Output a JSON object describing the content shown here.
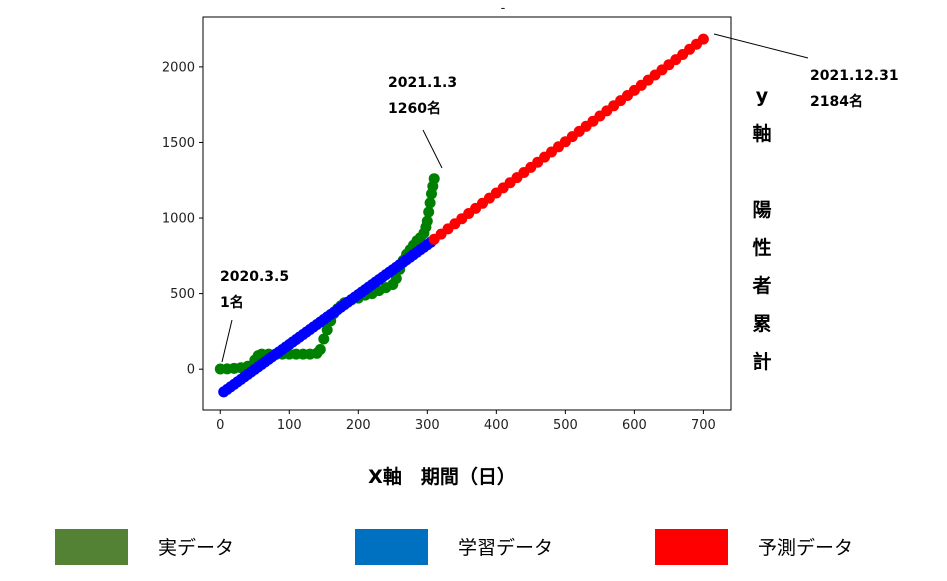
{
  "chart_data": {
    "type": "scatter",
    "title": "-",
    "xlabel": "X軸　期間（日）",
    "ylabel_chars": [
      "y",
      "軸",
      "",
      "陽",
      "性",
      "者",
      "累",
      "計"
    ],
    "xlim": [
      -25,
      740
    ],
    "ylim": [
      -270,
      2330
    ],
    "xticks": [
      0,
      100,
      200,
      300,
      400,
      500,
      600,
      700
    ],
    "yticks": [
      0,
      500,
      1000,
      1500,
      2000
    ],
    "grid": false,
    "legend_position": "bottom",
    "series": [
      {
        "name": "実データ",
        "color": "#008000",
        "legend_color": "#548235",
        "points": [
          [
            0,
            1
          ],
          [
            10,
            2
          ],
          [
            20,
            5
          ],
          [
            30,
            10
          ],
          [
            40,
            20
          ],
          [
            50,
            60
          ],
          [
            55,
            90
          ],
          [
            60,
            100
          ],
          [
            70,
            100
          ],
          [
            80,
            100
          ],
          [
            90,
            100
          ],
          [
            100,
            100
          ],
          [
            110,
            100
          ],
          [
            120,
            100
          ],
          [
            130,
            100
          ],
          [
            140,
            105
          ],
          [
            145,
            130
          ],
          [
            150,
            200
          ],
          [
            155,
            260
          ],
          [
            160,
            320
          ],
          [
            165,
            370
          ],
          [
            170,
            400
          ],
          [
            175,
            420
          ],
          [
            180,
            440
          ],
          [
            190,
            460
          ],
          [
            200,
            470
          ],
          [
            210,
            490
          ],
          [
            220,
            500
          ],
          [
            230,
            520
          ],
          [
            240,
            540
          ],
          [
            250,
            560
          ],
          [
            255,
            600
          ],
          [
            260,
            660
          ],
          [
            265,
            720
          ],
          [
            270,
            760
          ],
          [
            275,
            790
          ],
          [
            280,
            820
          ],
          [
            285,
            850
          ],
          [
            290,
            870
          ],
          [
            295,
            900
          ],
          [
            298,
            940
          ],
          [
            300,
            980
          ],
          [
            302,
            1040
          ],
          [
            304,
            1100
          ],
          [
            306,
            1160
          ],
          [
            308,
            1210
          ],
          [
            310,
            1260
          ]
        ]
      },
      {
        "name": "学習データ",
        "color": "#0000ff",
        "legend_color": "#0070c0",
        "x_start": 5,
        "x_end": 305,
        "x_step": 5,
        "y_at_start": -150,
        "y_at_end": 840
      },
      {
        "name": "予測データ",
        "color": "#ff0000",
        "legend_color": "#ff0000",
        "x_start": 310,
        "x_end": 700,
        "x_step": 10,
        "y_at_start": 860,
        "y_at_end": 2184
      }
    ],
    "annotations": [
      {
        "lines": [
          "2021.1.3",
          "1260名"
        ],
        "point": [
          310,
          1260
        ]
      },
      {
        "lines": [
          "2020.3.5",
          "1名"
        ],
        "point": [
          0,
          1
        ]
      },
      {
        "lines": [
          "2021.12.31",
          "2184名"
        ],
        "point": [
          700,
          2184
        ]
      }
    ]
  }
}
